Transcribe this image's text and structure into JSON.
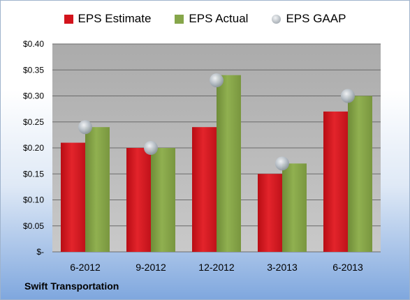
{
  "company": "Swift Transportation",
  "chart_data": {
    "type": "bar",
    "categories": [
      "6-2012",
      "9-2012",
      "12-2012",
      "3-2013",
      "6-2013"
    ],
    "series": [
      {
        "name": "EPS Estimate",
        "color": "#d3131c",
        "kind": "bar",
        "values": [
          0.21,
          0.2,
          0.24,
          0.15,
          0.27
        ]
      },
      {
        "name": "EPS Actual",
        "color": "#86a64a",
        "kind": "bar",
        "values": [
          0.24,
          0.2,
          0.34,
          0.17,
          0.3
        ]
      },
      {
        "name": "EPS GAAP",
        "color": "#b8c2cc",
        "kind": "marker",
        "values": [
          0.24,
          0.2,
          0.33,
          0.17,
          0.3
        ]
      }
    ],
    "ylim": [
      0,
      0.4
    ],
    "yticks": [
      0,
      0.05,
      0.1,
      0.15,
      0.2,
      0.25,
      0.3,
      0.35,
      0.4
    ],
    "ytick_labels": [
      "$-",
      "$0.05",
      "$0.10",
      "$0.15",
      "$0.20",
      "$0.25",
      "$0.30",
      "$0.35",
      "$0.40"
    ],
    "grid": true,
    "legend": "top"
  }
}
